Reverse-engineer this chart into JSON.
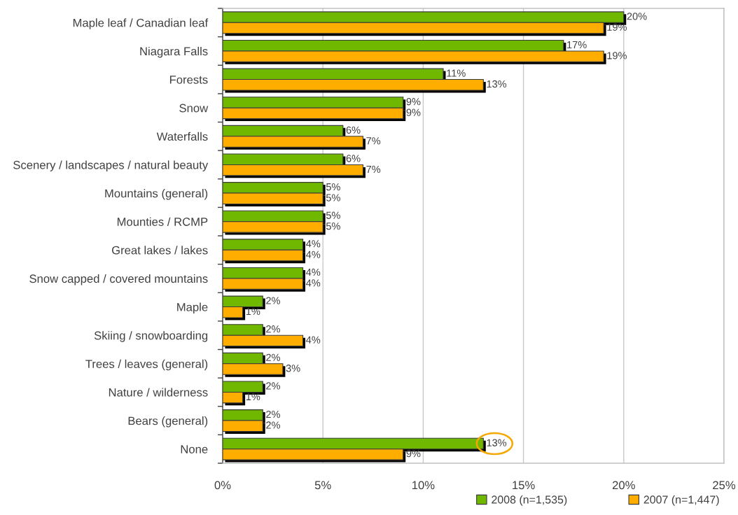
{
  "chart_data": {
    "type": "bar",
    "orientation": "horizontal",
    "categories": [
      "Maple leaf / Canadian leaf",
      "Niagara Falls",
      "Forests",
      "Snow",
      "Waterfalls",
      "Scenery / landscapes / natural beauty",
      "Mountains (general)",
      "Mounties / RCMP",
      "Great lakes / lakes",
      "Snow capped / covered mountains",
      "Maple",
      "Skiing / snowboarding",
      "Trees / leaves (general)",
      "Nature / wilderness",
      "Bears (general)",
      "None"
    ],
    "series": [
      {
        "name": "2008 (n=1,535)",
        "color": "#70b800",
        "values": [
          20,
          17,
          11,
          9,
          6,
          6,
          5,
          5,
          4,
          4,
          2,
          2,
          2,
          2,
          2,
          13
        ],
        "value_labels": [
          "20%",
          "17%",
          "11%",
          "9%",
          "6%",
          "6%",
          "5%",
          "5%",
          "4%",
          "4%",
          "2%",
          "2%",
          "2%",
          "2%",
          "2%",
          "13%"
        ]
      },
      {
        "name": "2007 (n=1,447)",
        "color": "#ffae00",
        "values": [
          19,
          19,
          13,
          9,
          7,
          7,
          5,
          5,
          4,
          4,
          1,
          4,
          3,
          1,
          2,
          9
        ],
        "value_labels": [
          "19%",
          "19%",
          "13%",
          "9%",
          "7%",
          "7%",
          "5%",
          "5%",
          "4%",
          "4%",
          "1%",
          "4%",
          "3%",
          "1%",
          "2%",
          "9%"
        ]
      }
    ],
    "xlim": [
      0,
      25
    ],
    "xticks": [
      {
        "value": 0,
        "label": "0%"
      },
      {
        "value": 5,
        "label": "5%"
      },
      {
        "value": 10,
        "label": "10%"
      },
      {
        "value": 15,
        "label": "15%"
      },
      {
        "value": 20,
        "label": "20%"
      },
      {
        "value": 25,
        "label": "25%"
      }
    ],
    "grid": "x",
    "legend": "bottom right"
  }
}
